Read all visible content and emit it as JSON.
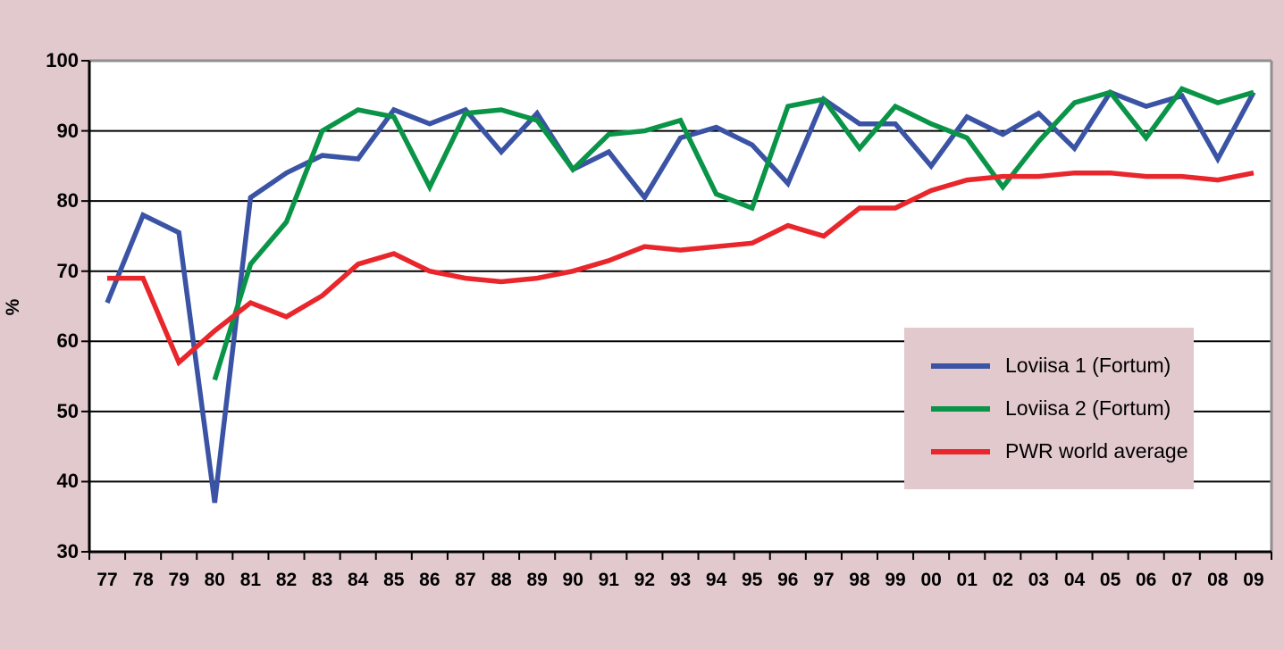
{
  "page": {
    "background": "#e2c9ce"
  },
  "chart_data": {
    "type": "line",
    "title": "",
    "xlabel": "",
    "ylabel": "%",
    "ylim": [
      30,
      100
    ],
    "yticks": [
      30,
      40,
      50,
      60,
      70,
      80,
      90,
      100
    ],
    "grid": "horizontal black gridlines every 10%",
    "legend_position": "inside-lower-right",
    "plot_bg": "#ffffff",
    "categories": [
      "77",
      "78",
      "79",
      "80",
      "81",
      "82",
      "83",
      "84",
      "85",
      "86",
      "87",
      "88",
      "89",
      "90",
      "91",
      "92",
      "93",
      "94",
      "95",
      "96",
      "97",
      "98",
      "99",
      "00",
      "01",
      "02",
      "03",
      "04",
      "05",
      "06",
      "07",
      "08",
      "09"
    ],
    "series": [
      {
        "name": "Loviisa 1 (Fortum)",
        "color": "#3a53a4",
        "values": [
          65.5,
          78,
          75.5,
          37,
          80.5,
          84,
          86.5,
          86,
          93,
          91,
          93,
          87,
          92.5,
          84.5,
          87,
          80.5,
          89,
          90.5,
          88,
          82.5,
          94.5,
          91,
          91,
          85,
          92,
          89.5,
          92.5,
          87.5,
          95.5,
          93.5,
          95,
          86,
          95.5
        ]
      },
      {
        "name": "Loviisa 2 (Fortum)",
        "color": "#0a9447",
        "values": [
          null,
          null,
          null,
          54.5,
          71,
          77,
          90,
          93,
          92,
          82,
          92.5,
          93,
          91.5,
          84.5,
          89.5,
          90,
          91.5,
          81,
          79,
          93.5,
          94.5,
          87.5,
          93.5,
          91,
          89,
          82,
          88.5,
          94,
          95.5,
          89,
          96,
          94,
          95.5
        ]
      },
      {
        "name": "PWR world average",
        "color": "#e8262b",
        "values": [
          69,
          69,
          57,
          61.5,
          65.5,
          63.5,
          66.5,
          71,
          72.5,
          70,
          69,
          68.5,
          69,
          70,
          71.5,
          73.5,
          73,
          73.5,
          74,
          76.5,
          75,
          79,
          79,
          81.5,
          83,
          83.5,
          83.5,
          84,
          84,
          83.5,
          83.5,
          83,
          84
        ]
      }
    ]
  },
  "style": {
    "grid_color": "#000000",
    "axis_color": "#000000",
    "frame_color": "#8f8f8f",
    "line_width": 5.5
  }
}
